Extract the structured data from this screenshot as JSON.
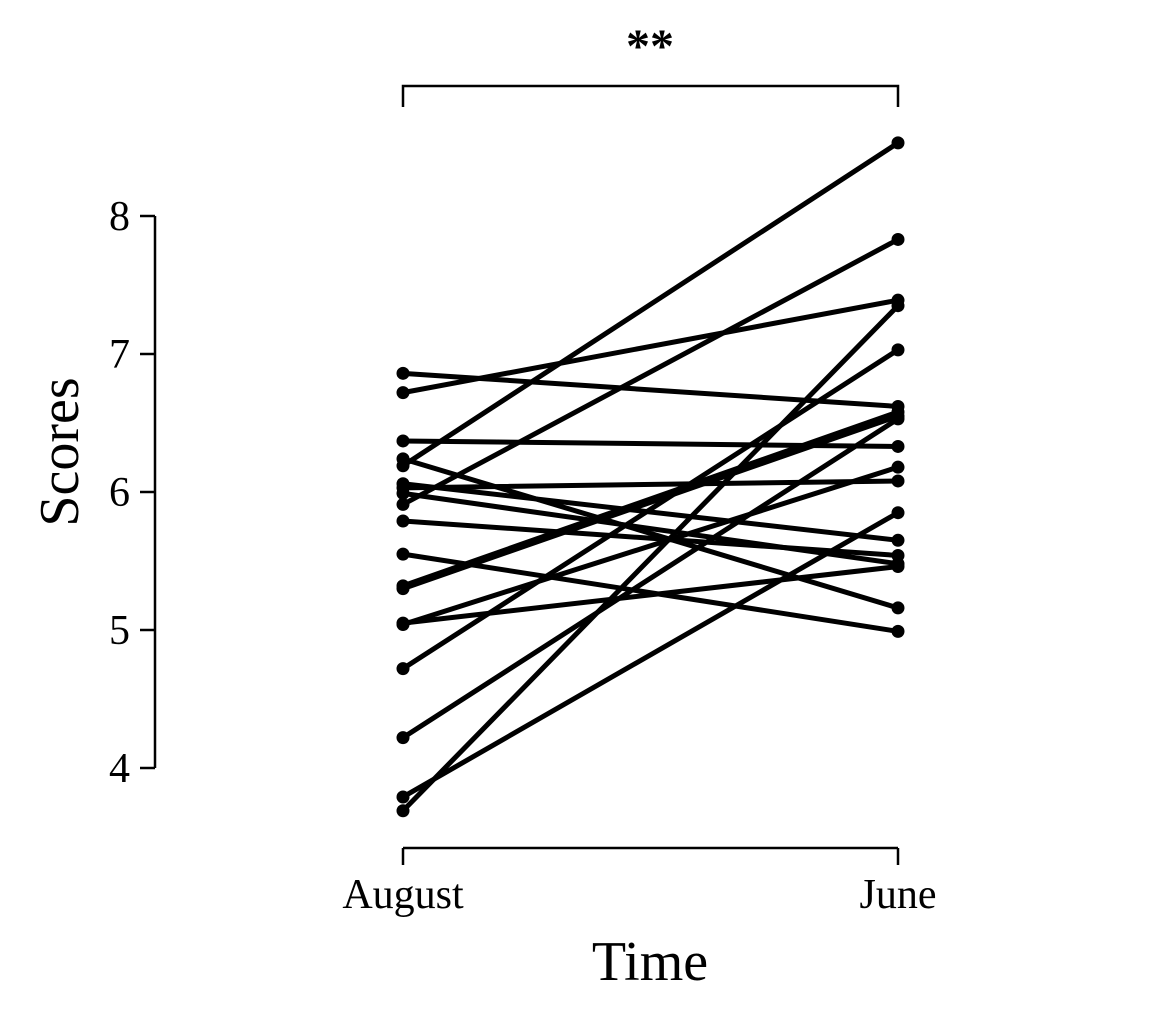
{
  "chart_data": {
    "type": "line",
    "xlabel": "Time",
    "ylabel": "Scores",
    "categories": [
      "August",
      "June"
    ],
    "yticks": [
      4,
      5,
      6,
      7,
      8
    ],
    "ylim": [
      3.4,
      8.6
    ],
    "significance": "**",
    "colors": {
      "line": "#000000",
      "point": "#000000"
    },
    "series": [
      {
        "values": [
          6.86,
          6.62
        ]
      },
      {
        "values": [
          6.72,
          7.39
        ]
      },
      {
        "values": [
          6.37,
          6.33
        ]
      },
      {
        "values": [
          6.24,
          5.16
        ]
      },
      {
        "values": [
          6.19,
          8.53
        ]
      },
      {
        "values": [
          6.06,
          5.65
        ]
      },
      {
        "values": [
          6.03,
          6.08
        ]
      },
      {
        "values": [
          5.99,
          5.48
        ]
      },
      {
        "values": [
          5.91,
          7.83
        ]
      },
      {
        "values": [
          5.79,
          5.54
        ]
      },
      {
        "values": [
          5.55,
          4.99
        ]
      },
      {
        "values": [
          5.32,
          6.58
        ]
      },
      {
        "values": [
          5.3,
          6.55
        ]
      },
      {
        "values": [
          5.05,
          5.46
        ]
      },
      {
        "values": [
          5.04,
          6.18
        ]
      },
      {
        "values": [
          4.72,
          7.03
        ]
      },
      {
        "values": [
          4.22,
          6.53
        ]
      },
      {
        "values": [
          3.79,
          5.85
        ]
      },
      {
        "values": [
          3.69,
          7.35
        ]
      }
    ]
  }
}
